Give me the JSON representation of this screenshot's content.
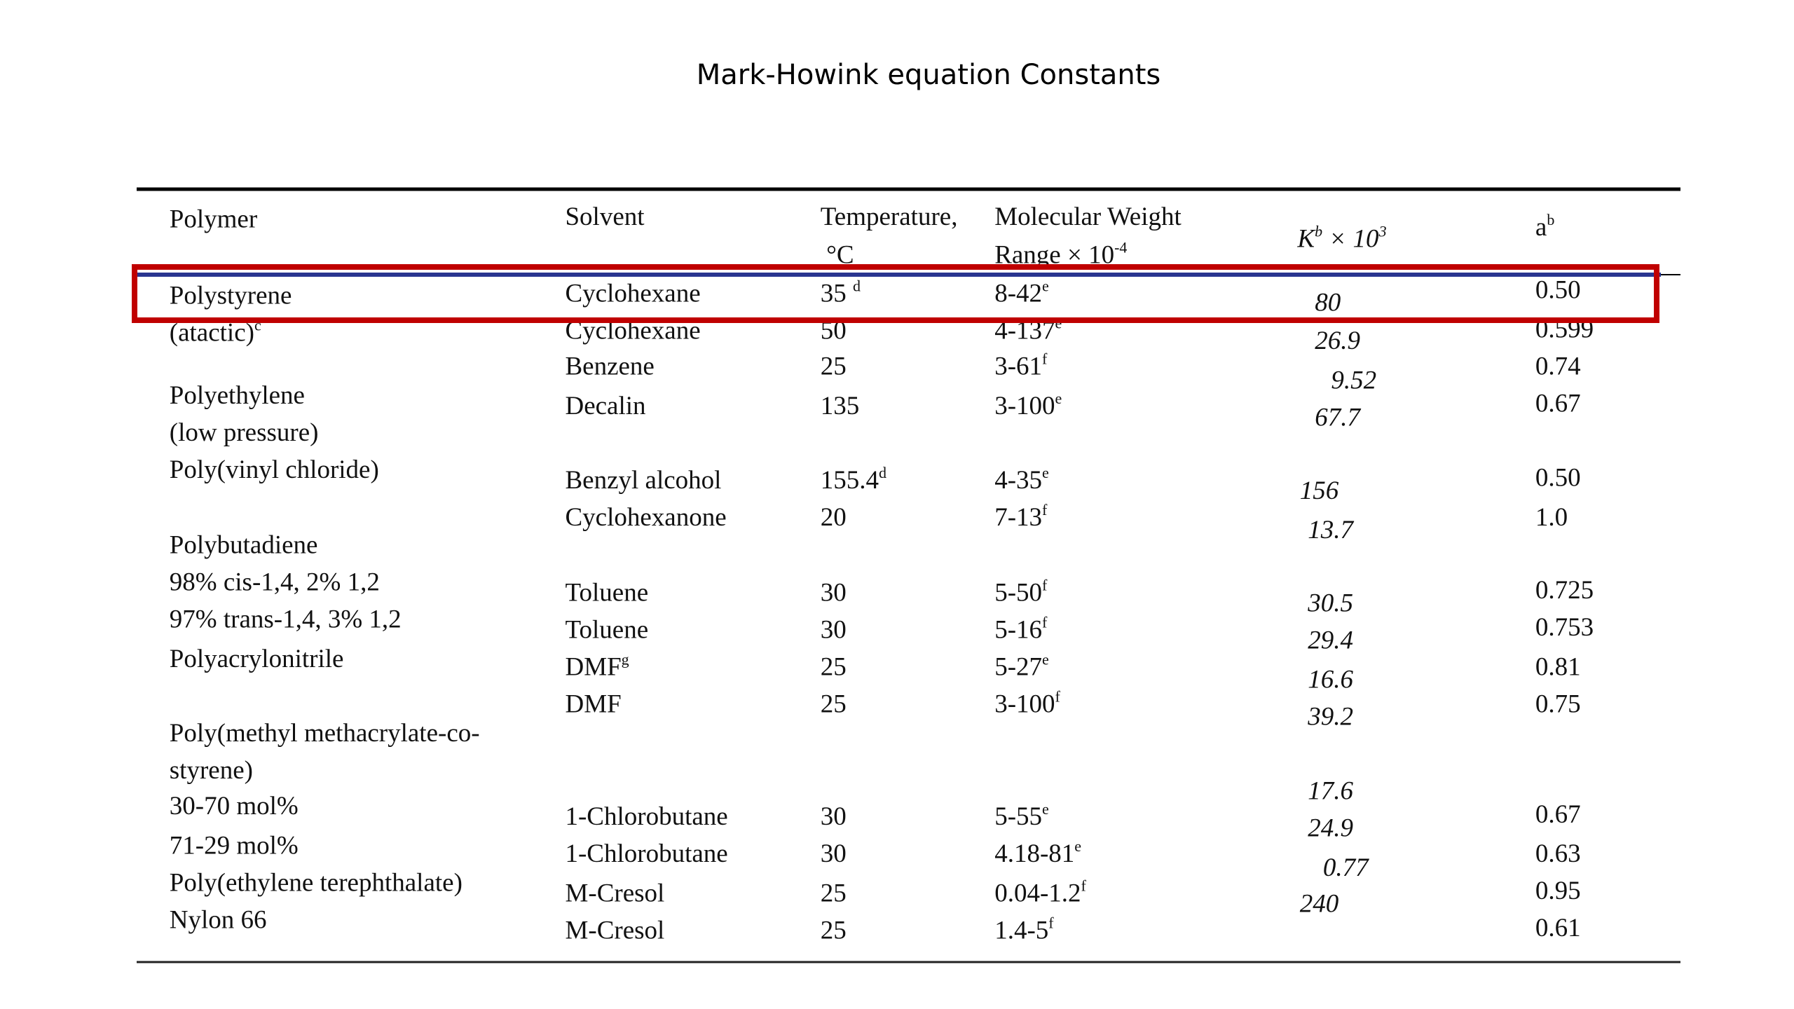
{
  "title": "Mark-Howink equation Constants",
  "table": {
    "header": {
      "polymer": "Polymer",
      "solvent": "Solvent",
      "temperature": [
        "Temperature,",
        "°C"
      ],
      "molecular_weight": [
        "Molecular Weight",
        {
          "text": "Range × 10",
          "sup": "-4"
        }
      ],
      "k": [
        {
          "text": "K",
          "sup": "b"
        },
        {
          "text": "× 10",
          "sup": "3"
        }
      ],
      "a": {
        "text": "a",
        "sup": "b"
      }
    },
    "polymers": [
      "Polystyrene",
      {
        "text": "(atactic)",
        "sup": "c"
      },
      "Polyethylene",
      "(low pressure)",
      "Poly(vinyl chloride)",
      "Polybutadiene",
      "98% cis-1,4, 2% 1,2",
      "97% trans-1,4, 3% 1,2",
      "Polyacrylonitrile",
      "Poly(methyl methacrylate-co-",
      "styrene)",
      "30-70 mol%",
      "71-29 mol%",
      "Poly(ethylene terephthalate)",
      "Nylon 66"
    ],
    "rows": [
      [
        "Cyclohexane",
        {
          "text": "35 ",
          "sup": "d"
        },
        {
          "text": "8-42",
          "sup": "e"
        },
        "80",
        "0.50"
      ],
      [
        "Cyclohexane",
        "50",
        {
          "text": "4-137",
          "sup": "e"
        },
        "26.9",
        "0.599"
      ],
      [
        "Benzene",
        "25",
        {
          "text": "3-61",
          "sup": "f"
        },
        "9.52",
        "0.74"
      ],
      [
        "Decalin",
        "135",
        {
          "text": "3-100",
          "sup": "e"
        },
        "67.7",
        "0.67"
      ],
      [
        "Benzyl alcohol",
        {
          "text": "155.4",
          "sup": "d"
        },
        {
          "text": "4-35",
          "sup": "e"
        },
        "156",
        "0.50"
      ],
      [
        "Cyclohexanone",
        "20",
        {
          "text": "7-13",
          "sup": "f"
        },
        "13.7",
        "1.0"
      ],
      [
        "Toluene",
        "30",
        {
          "text": "5-50",
          "sup": "f"
        },
        "30.5",
        "0.725"
      ],
      [
        "Toluene",
        "30",
        {
          "text": "5-16",
          "sup": "f"
        },
        "29.4",
        "0.753"
      ],
      [
        {
          "text": "DMF",
          "sup": "g"
        },
        "25",
        {
          "text": "5-27",
          "sup": "e"
        },
        "16.6",
        "0.81"
      ],
      [
        "DMF",
        "25",
        {
          "text": "3-100",
          "sup": "f"
        },
        "39.2",
        "0.75"
      ],
      [
        "1-Chlorobutane",
        "30",
        {
          "text": "5-55",
          "sup": "e"
        },
        "17.6",
        "0.67"
      ],
      [
        "1-Chlorobutane",
        "30",
        {
          "text": "4.18-81",
          "sup": "e"
        },
        "24.9",
        "0.63"
      ],
      [
        "M-Cresol",
        "25",
        {
          "text": "0.04-1.2",
          "sup": "f"
        },
        "0.77",
        "0.95"
      ],
      [
        "M-Cresol",
        "25",
        {
          "text": "1.4-5",
          "sup": "f"
        },
        "240",
        "0.61"
      ]
    ]
  }
}
